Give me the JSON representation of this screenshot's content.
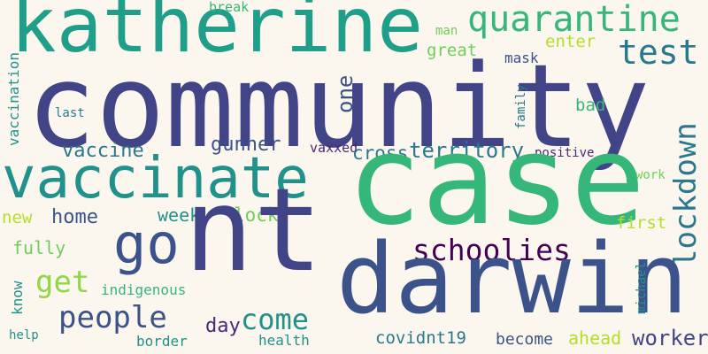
{
  "words": [
    {
      "text": "katherine",
      "color": "#1f9e89"
    },
    {
      "text": "community",
      "color": "#414487"
    },
    {
      "text": "quarantine",
      "color": "#35b779"
    },
    {
      "text": "test",
      "color": "#2a788e"
    },
    {
      "text": "break",
      "color": "#35b779"
    },
    {
      "text": "man",
      "color": "#6ece58"
    },
    {
      "text": "great",
      "color": "#6ece58"
    },
    {
      "text": "enter",
      "color": "#b5de2b"
    },
    {
      "text": "mask",
      "color": "#3b528b"
    },
    {
      "text": "one",
      "color": "#3b528b"
    },
    {
      "text": "vaccination",
      "color": "#21918c"
    },
    {
      "text": "last",
      "color": "#2a788e"
    },
    {
      "text": "family",
      "color": "#2a788e"
    },
    {
      "text": "bad",
      "color": "#35b779"
    },
    {
      "text": "lockdown",
      "color": "#2a788e"
    },
    {
      "text": "vaccine",
      "color": "#2a788e"
    },
    {
      "text": "gunner",
      "color": "#3b528b"
    },
    {
      "text": "vaxxed",
      "color": "#482878"
    },
    {
      "text": "cross",
      "color": "#2a788e"
    },
    {
      "text": "territory",
      "color": "#2a788e"
    },
    {
      "text": "positive",
      "color": "#482878"
    },
    {
      "text": "vaccinate",
      "color": "#21918c"
    },
    {
      "text": "case",
      "color": "#35b779"
    },
    {
      "text": "work",
      "color": "#6ece58"
    },
    {
      "text": "new",
      "color": "#b5de2b"
    },
    {
      "text": "home",
      "color": "#3b528b"
    },
    {
      "text": "week",
      "color": "#21918c"
    },
    {
      "text": "lock",
      "color": "#6ece58"
    },
    {
      "text": "first",
      "color": "#b5de2b"
    },
    {
      "text": "go",
      "color": "#3b528b"
    },
    {
      "text": "nt",
      "color": "#414487"
    },
    {
      "text": "schoolies",
      "color": "#440154"
    },
    {
      "text": "fully",
      "color": "#6ece58"
    },
    {
      "text": "get",
      "color": "#8fd744"
    },
    {
      "text": "darwin",
      "color": "#3b528b"
    },
    {
      "text": "know",
      "color": "#21918c"
    },
    {
      "text": "indigenous",
      "color": "#35b779"
    },
    {
      "text": "michael",
      "color": "#21918c"
    },
    {
      "text": "people",
      "color": "#3b528b"
    },
    {
      "text": "come",
      "color": "#21918c"
    },
    {
      "text": "day",
      "color": "#482878"
    },
    {
      "text": "help",
      "color": "#21918c"
    },
    {
      "text": "border",
      "color": "#21918c"
    },
    {
      "text": "health",
      "color": "#21918c"
    },
    {
      "text": "covidnt19",
      "color": "#2a788e"
    },
    {
      "text": "become",
      "color": "#3b528b"
    },
    {
      "text": "ahead",
      "color": "#b5de2b"
    },
    {
      "text": "worker",
      "color": "#414487"
    }
  ]
}
